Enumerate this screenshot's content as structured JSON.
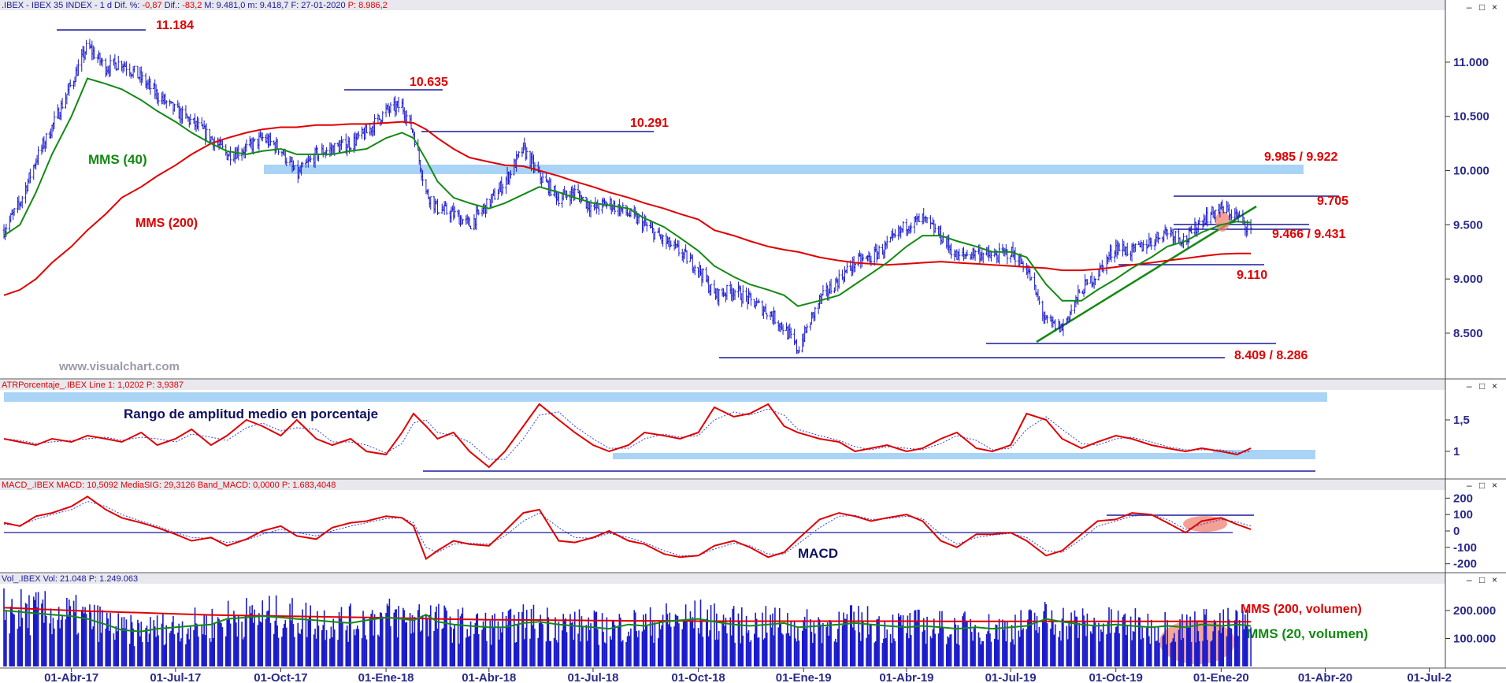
{
  "panels": {
    "price": {
      "header": ".IBEX - IBEX 35 INDEX - 1 d Dif. %: -0,87 Dif.: -83,2 M: 9.481,0 m: 9.418,7 F: 27-01-2020 P: 8.986,2",
      "header_plain": ".IBEX - IBEX 35 INDEX - 1 d Dif. %: ",
      "header_red1": "-0,87",
      "header_mid1": " Dif.: ",
      "header_red2": "-83,2",
      "header_mid2": " M: 9.481,0 m: 9.418,7 F: 27-01-2020 ",
      "header_red3": "P: 8.986,2",
      "watermark": "www.visualchart.com",
      "labels": {
        "mms40": "MMS (40)",
        "mms200": "MMS (200)",
        "l11184": "11.184",
        "l10635": "10.635",
        "l10291": "10.291",
        "l9985": "9.985 / 9.922",
        "l9705": "9.705",
        "l9466": "9.466 / 9.431",
        "l9110": "9.110",
        "l8409": "8.409 / 8.286"
      },
      "yticks": [
        "11.000",
        "10.500",
        "10.000",
        "9.500",
        "9.000",
        "8.500"
      ]
    },
    "atr": {
      "header": "ATRPorcentaje_.IBEX Line 1: 1,0202 P: 3,9387",
      "title": "Rango de amplitud medio en porcentaje",
      "yticks": [
        "1,5",
        "1"
      ]
    },
    "macd": {
      "header": "MACD_.IBEX MACD: 10,5092 MediaSIG: 29,3126 Band_MACD: 0,0000 P: 1.683,4048",
      "title": "MACD",
      "yticks": [
        "200",
        "100",
        "0",
        "-100",
        "-200"
      ]
    },
    "vol": {
      "header": "Vol_.IBEX Vol: 21.048 P: 1.249.063",
      "labels": {
        "mms200v": "MMS (200, volumen)",
        "mms20v": "MMS (20, volumen)"
      },
      "yticks": [
        "200.000",
        "100.000"
      ]
    }
  },
  "xaxis": {
    "labels": [
      "01-Abr-17",
      "01-Jul-17",
      "01-Oct-17",
      "01-Ene-18",
      "01-Abr-18",
      "01-Jul-18",
      "01-Oct-18",
      "01-Ene-19",
      "01-Abr-19",
      "01-Jul-19",
      "01-Oct-19",
      "01-Ene-20",
      "01-Abr-20",
      "01-Jul-2"
    ]
  },
  "window_controls": {
    "minimize": "–",
    "restore": "□",
    "close": "×"
  },
  "chart_data": {
    "type": "line",
    "title": ".IBEX - IBEX 35 INDEX - 1 d",
    "x_start": "2017-02-01",
    "x_end": "2020-01-27",
    "x_axis_end": "2020-07-15",
    "price": {
      "ylim": [
        8100,
        11450
      ],
      "x": [
        "2017-02-01",
        "2017-02-15",
        "2017-03-01",
        "2017-03-15",
        "2017-04-01",
        "2017-04-15",
        "2017-05-01",
        "2017-05-15",
        "2017-06-01",
        "2017-06-15",
        "2017-07-01",
        "2017-07-15",
        "2017-08-01",
        "2017-08-15",
        "2017-09-01",
        "2017-09-15",
        "2017-10-01",
        "2017-10-15",
        "2017-11-01",
        "2017-11-15",
        "2017-12-01",
        "2017-12-15",
        "2018-01-01",
        "2018-01-15",
        "2018-01-25",
        "2018-02-05",
        "2018-02-15",
        "2018-03-01",
        "2018-03-15",
        "2018-04-01",
        "2018-04-15",
        "2018-05-01",
        "2018-05-15",
        "2018-06-01",
        "2018-06-15",
        "2018-07-01",
        "2018-07-15",
        "2018-08-01",
        "2018-08-15",
        "2018-09-01",
        "2018-09-15",
        "2018-10-01",
        "2018-10-15",
        "2018-11-01",
        "2018-11-15",
        "2018-12-01",
        "2018-12-15",
        "2018-12-27",
        "2019-01-15",
        "2019-02-01",
        "2019-02-15",
        "2019-03-01",
        "2019-03-15",
        "2019-04-01",
        "2019-04-15",
        "2019-05-01",
        "2019-05-15",
        "2019-06-01",
        "2019-06-15",
        "2019-07-01",
        "2019-07-15",
        "2019-08-01",
        "2019-08-15",
        "2019-09-01",
        "2019-09-15",
        "2019-10-01",
        "2019-10-15",
        "2019-11-01",
        "2019-11-15",
        "2019-12-01",
        "2019-12-15",
        "2020-01-01",
        "2020-01-15",
        "2020-01-27"
      ],
      "close": [
        9450,
        9700,
        10100,
        10400,
        10800,
        11150,
        10950,
        11000,
        10850,
        10700,
        10550,
        10450,
        10300,
        10150,
        10200,
        10300,
        10200,
        9950,
        10150,
        10200,
        10250,
        10350,
        10550,
        10600,
        10350,
        9800,
        9650,
        9600,
        9500,
        9700,
        9900,
        10200,
        9950,
        9750,
        9800,
        9650,
        9700,
        9600,
        9500,
        9350,
        9250,
        9100,
        8850,
        8900,
        8800,
        8700,
        8550,
        8350,
        8800,
        9000,
        9150,
        9200,
        9300,
        9500,
        9550,
        9400,
        9200,
        9250,
        9200,
        9250,
        9100,
        8600,
        8550,
        8900,
        9050,
        9300,
        9250,
        9350,
        9450,
        9350,
        9550,
        9650,
        9580,
        9450
      ],
      "mms40": [
        9400,
        9500,
        9800,
        10150,
        10500,
        10850,
        10800,
        10750,
        10650,
        10550,
        10450,
        10350,
        10250,
        10180,
        10150,
        10180,
        10200,
        10150,
        10150,
        10150,
        10180,
        10200,
        10300,
        10350,
        10300,
        10100,
        9900,
        9750,
        9700,
        9650,
        9700,
        9780,
        9850,
        9800,
        9750,
        9700,
        9680,
        9650,
        9560,
        9480,
        9380,
        9260,
        9120,
        9020,
        8950,
        8900,
        8850,
        8750,
        8800,
        8850,
        8950,
        9050,
        9150,
        9300,
        9400,
        9400,
        9350,
        9300,
        9250,
        9250,
        9200,
        8950,
        8800,
        8800,
        8900,
        9000,
        9100,
        9200,
        9300,
        9350,
        9430,
        9500,
        9530,
        9520
      ],
      "mms200": [
        8850,
        8900,
        9000,
        9150,
        9300,
        9450,
        9600,
        9750,
        9850,
        9950,
        10050,
        10150,
        10250,
        10300,
        10350,
        10380,
        10400,
        10400,
        10420,
        10420,
        10430,
        10430,
        10440,
        10450,
        10440,
        10380,
        10300,
        10200,
        10120,
        10080,
        10050,
        10040,
        10000,
        9950,
        9900,
        9850,
        9800,
        9750,
        9700,
        9650,
        9600,
        9550,
        9450,
        9400,
        9350,
        9300,
        9270,
        9250,
        9200,
        9170,
        9150,
        9140,
        9130,
        9140,
        9150,
        9160,
        9150,
        9140,
        9130,
        9120,
        9110,
        9100,
        9080,
        9080,
        9090,
        9110,
        9130,
        9150,
        9170,
        9190,
        9210,
        9230,
        9235,
        9235
      ]
    },
    "atr": {
      "ylim": [
        0.6,
        1.95
      ],
      "line1": [
        1.2,
        1.15,
        1.1,
        1.2,
        1.15,
        1.25,
        1.2,
        1.15,
        1.3,
        1.1,
        1.2,
        1.35,
        1.1,
        1.25,
        1.5,
        1.4,
        1.25,
        1.5,
        1.2,
        1.1,
        1.2,
        1.0,
        0.95,
        1.3,
        1.6,
        1.4,
        1.2,
        1.3,
        1.0,
        0.75,
        1.0,
        1.4,
        1.75,
        1.5,
        1.3,
        1.1,
        1.0,
        1.1,
        1.3,
        1.25,
        1.2,
        1.3,
        1.7,
        1.55,
        1.6,
        1.75,
        1.4,
        1.3,
        1.2,
        1.15,
        1.0,
        1.05,
        1.1,
        1.0,
        1.05,
        1.2,
        1.3,
        1.05,
        1.0,
        1.1,
        1.6,
        1.5,
        1.2,
        1.05,
        1.15,
        1.25,
        1.2,
        1.1,
        1.05,
        1.0,
        1.05,
        1.0,
        0.95,
        1.05
      ],
      "band": [
        1.75,
        1.85
      ],
      "support": 0.93
    },
    "macd": {
      "ylim": [
        -240,
        240
      ],
      "macd": [
        50,
        30,
        90,
        110,
        150,
        210,
        130,
        80,
        50,
        20,
        -20,
        -60,
        -40,
        -90,
        -50,
        0,
        30,
        -30,
        -50,
        20,
        50,
        60,
        90,
        80,
        30,
        -170,
        -120,
        -60,
        -80,
        -90,
        0,
        110,
        130,
        -60,
        -70,
        -40,
        0,
        -60,
        -80,
        -140,
        -160,
        -150,
        -90,
        -60,
        -100,
        -160,
        -130,
        -50,
        70,
        110,
        90,
        60,
        80,
        100,
        60,
        -60,
        -100,
        -20,
        -20,
        -10,
        -60,
        -150,
        -120,
        -20,
        60,
        70,
        110,
        100,
        50,
        -10,
        60,
        80,
        40,
        10
      ],
      "signal": [
        40,
        35,
        70,
        100,
        130,
        180,
        150,
        100,
        60,
        30,
        -10,
        -40,
        -45,
        -70,
        -55,
        -20,
        10,
        -10,
        -30,
        0,
        30,
        50,
        75,
        80,
        50,
        -100,
        -130,
        -80,
        -75,
        -80,
        -30,
        60,
        110,
        20,
        -40,
        -45,
        -15,
        -40,
        -70,
        -120,
        -150,
        -150,
        -110,
        -75,
        -90,
        -140,
        -140,
        -80,
        20,
        90,
        95,
        70,
        75,
        90,
        75,
        -20,
        -80,
        -40,
        -25,
        -15,
        -40,
        -120,
        -130,
        -50,
        30,
        60,
        90,
        100,
        70,
        10,
        40,
        70,
        55,
        30
      ]
    },
    "volume": {
      "ylim": [
        0,
        290000
      ],
      "mms200v": [
        210000,
        208000,
        205000,
        203000,
        200000,
        198000,
        196000,
        194000,
        192000,
        190000,
        188000,
        186000,
        184000,
        183000,
        182000,
        181000,
        180000,
        179000,
        178000,
        177000,
        176000,
        175000,
        174000,
        173000,
        172000,
        171000,
        170000,
        169000,
        168000,
        167000,
        167000,
        166000,
        166000,
        165000,
        165000,
        164000,
        164000,
        163000,
        163000,
        163000,
        163000,
        162000,
        162000,
        162000,
        162000,
        162000,
        162000,
        162000,
        162000,
        162000,
        162000,
        162000,
        162000,
        162000,
        162000,
        161000,
        161000,
        161000,
        161000,
        161000,
        161000,
        161000,
        161000,
        161000,
        161000,
        161000,
        161000,
        161000,
        161000,
        161000,
        161000,
        160000,
        160000,
        160000
      ],
      "mms20v": [
        200000,
        195000,
        190000,
        185000,
        180000,
        170000,
        150000,
        130000,
        125000,
        135000,
        140000,
        145000,
        150000,
        170000,
        175000,
        180000,
        175000,
        170000,
        165000,
        160000,
        155000,
        165000,
        175000,
        170000,
        165000,
        185000,
        160000,
        150000,
        145000,
        140000,
        140000,
        155000,
        160000,
        150000,
        145000,
        140000,
        135000,
        150000,
        145000,
        160000,
        165000,
        170000,
        160000,
        150000,
        145000,
        150000,
        155000,
        140000,
        145000,
        150000,
        155000,
        150000,
        145000,
        140000,
        145000,
        140000,
        135000,
        140000,
        135000,
        140000,
        145000,
        170000,
        160000,
        150000,
        145000,
        150000,
        145000,
        140000,
        145000,
        140000,
        150000,
        145000,
        150000,
        145000
      ]
    }
  }
}
